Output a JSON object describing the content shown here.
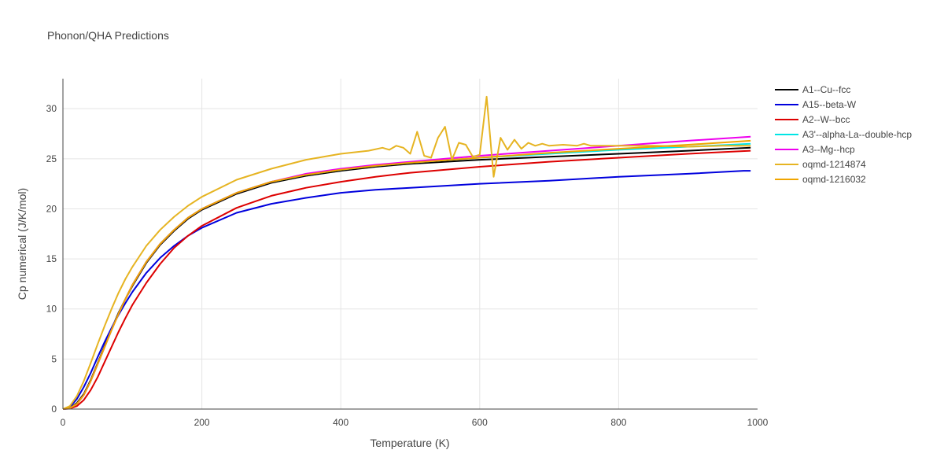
{
  "chart_data": {
    "type": "line",
    "title": "Phonon/QHA Predictions",
    "xlabel": "Temperature (K)",
    "ylabel": "Cp numerical (J/K/mol)",
    "xlim": [
      0,
      1000
    ],
    "ylim": [
      0,
      33
    ],
    "xticks": [
      "0",
      "200",
      "400",
      "600",
      "800",
      "1000"
    ],
    "yticks": [
      "0",
      "5",
      "10",
      "15",
      "20",
      "25",
      "30"
    ],
    "legend_position": "top-right",
    "grid": true,
    "series": [
      {
        "name": "A1--Cu--fcc",
        "color": "#000000",
        "x": [
          0,
          10,
          20,
          30,
          40,
          50,
          60,
          70,
          80,
          90,
          100,
          120,
          140,
          160,
          180,
          200,
          250,
          300,
          350,
          400,
          450,
          500,
          600,
          700,
          800,
          900,
          990
        ],
        "y": [
          0,
          0.1,
          0.6,
          1.5,
          2.9,
          4.6,
          6.3,
          8.0,
          9.6,
          11.0,
          12.3,
          14.6,
          16.4,
          17.8,
          19.0,
          19.9,
          21.5,
          22.6,
          23.3,
          23.8,
          24.2,
          24.5,
          24.9,
          25.2,
          25.5,
          25.8,
          26.1
        ]
      },
      {
        "name": "A15--beta-W",
        "color": "#0000dd",
        "x": [
          0,
          10,
          20,
          30,
          40,
          50,
          60,
          70,
          80,
          90,
          100,
          120,
          140,
          160,
          180,
          200,
          250,
          300,
          350,
          400,
          450,
          500,
          600,
          700,
          800,
          900,
          980,
          990
        ],
        "y": [
          0,
          0.2,
          1.0,
          2.2,
          3.6,
          5.2,
          6.7,
          8.1,
          9.4,
          10.6,
          11.7,
          13.6,
          15.1,
          16.3,
          17.3,
          18.1,
          19.6,
          20.5,
          21.1,
          21.6,
          21.9,
          22.1,
          22.5,
          22.8,
          23.2,
          23.5,
          23.8,
          23.8
        ]
      },
      {
        "name": "A2--W--bcc",
        "color": "#dd0000",
        "x": [
          0,
          10,
          20,
          30,
          40,
          50,
          60,
          70,
          80,
          90,
          100,
          120,
          140,
          160,
          180,
          200,
          250,
          300,
          350,
          400,
          450,
          500,
          600,
          700,
          800,
          900,
          990
        ],
        "y": [
          0,
          0.05,
          0.3,
          0.9,
          1.9,
          3.2,
          4.7,
          6.2,
          7.7,
          9.1,
          10.4,
          12.6,
          14.5,
          16.1,
          17.3,
          18.3,
          20.1,
          21.3,
          22.1,
          22.7,
          23.2,
          23.6,
          24.2,
          24.7,
          25.1,
          25.5,
          25.8
        ]
      },
      {
        "name": "A3'--alpha-La--double-hcp",
        "color": "#00e5e5",
        "x": [
          0,
          10,
          20,
          30,
          40,
          50,
          60,
          70,
          80,
          90,
          100,
          120,
          140,
          160,
          180,
          200,
          250,
          300,
          350,
          400,
          450,
          500,
          600,
          700,
          800,
          900,
          990
        ],
        "y": [
          0,
          0.1,
          0.5,
          1.4,
          2.8,
          4.5,
          6.2,
          7.9,
          9.5,
          11.0,
          12.4,
          14.7,
          16.5,
          17.9,
          19.1,
          20.0,
          21.6,
          22.7,
          23.4,
          23.9,
          24.3,
          24.6,
          25.1,
          25.5,
          25.9,
          26.2,
          26.5
        ]
      },
      {
        "name": "A3--Mg--hcp",
        "color": "#ee00ee",
        "x": [
          0,
          10,
          20,
          30,
          40,
          50,
          60,
          70,
          80,
          90,
          100,
          120,
          140,
          160,
          180,
          200,
          250,
          300,
          350,
          400,
          450,
          500,
          600,
          700,
          800,
          900,
          990
        ],
        "y": [
          0,
          0.1,
          0.5,
          1.4,
          2.8,
          4.5,
          6.2,
          7.9,
          9.5,
          11.0,
          12.4,
          14.7,
          16.5,
          17.9,
          19.1,
          20.0,
          21.6,
          22.7,
          23.5,
          24.0,
          24.4,
          24.7,
          25.3,
          25.8,
          26.3,
          26.8,
          27.2
        ]
      },
      {
        "name": "oqmd-1214874",
        "color": "#e6b422",
        "x": [
          0,
          10,
          20,
          30,
          40,
          50,
          60,
          70,
          80,
          90,
          100,
          120,
          140,
          160,
          180,
          200,
          250,
          300,
          350,
          400,
          440,
          460,
          470,
          480,
          490,
          500,
          510,
          520,
          530,
          540,
          550,
          560,
          570,
          580,
          590,
          600,
          610,
          620,
          630,
          640,
          650,
          660,
          670,
          680,
          690,
          700,
          720,
          740,
          750,
          760,
          780,
          800,
          850,
          900,
          950,
          990
        ],
        "y": [
          0,
          0.3,
          1.3,
          2.8,
          4.6,
          6.5,
          8.3,
          10.0,
          11.6,
          13.0,
          14.2,
          16.3,
          17.9,
          19.2,
          20.3,
          21.2,
          22.9,
          24.0,
          24.9,
          25.5,
          25.8,
          26.1,
          25.9,
          26.3,
          26.1,
          25.5,
          27.7,
          25.3,
          25.1,
          27.1,
          28.2,
          24.9,
          26.6,
          26.4,
          25.2,
          25.4,
          31.2,
          23.2,
          27.1,
          25.9,
          26.9,
          26.0,
          26.6,
          26.3,
          26.5,
          26.3,
          26.4,
          26.3,
          26.5,
          26.3,
          26.3,
          26.3,
          26.3,
          26.2,
          26.3,
          26.3
        ]
      },
      {
        "name": "oqmd-1216032",
        "color": "#f0a500",
        "x": [
          0,
          10,
          20,
          30,
          40,
          50,
          60,
          70,
          80,
          90,
          100,
          120,
          140,
          160,
          180,
          200,
          250,
          300,
          350,
          400,
          450,
          500,
          600,
          700,
          800,
          900,
          990
        ],
        "y": [
          0,
          0.1,
          0.5,
          1.4,
          2.8,
          4.5,
          6.2,
          7.9,
          9.5,
          11.0,
          12.4,
          14.7,
          16.5,
          17.9,
          19.1,
          20.0,
          21.6,
          22.7,
          23.4,
          23.9,
          24.3,
          24.6,
          25.1,
          25.6,
          26.0,
          26.4,
          26.8
        ]
      }
    ]
  }
}
